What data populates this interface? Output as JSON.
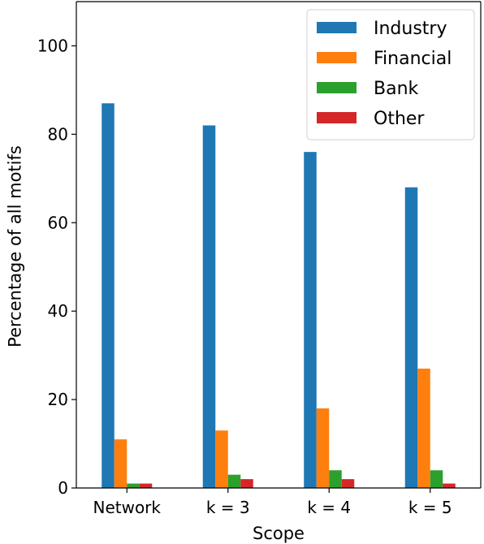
{
  "chart_data": {
    "type": "bar",
    "categories": [
      "Network",
      "k = 3",
      "k = 4",
      "k = 5"
    ],
    "series": [
      {
        "name": "Industry",
        "values": [
          87,
          82,
          76,
          68
        ],
        "color": "#1f77b4"
      },
      {
        "name": "Financial",
        "values": [
          11,
          13,
          18,
          27
        ],
        "color": "#ff7f0e"
      },
      {
        "name": "Bank",
        "values": [
          1,
          3,
          4,
          4
        ],
        "color": "#2ca02c"
      },
      {
        "name": "Other",
        "values": [
          1,
          2,
          2,
          1
        ],
        "color": "#d62728"
      }
    ],
    "xlabel": "Scope",
    "ylabel": "Percentage of all motifs",
    "ylim": [
      0,
      110
    ],
    "yticks": [
      0,
      20,
      40,
      60,
      80,
      100
    ],
    "grid": false,
    "legend": "top-right"
  }
}
